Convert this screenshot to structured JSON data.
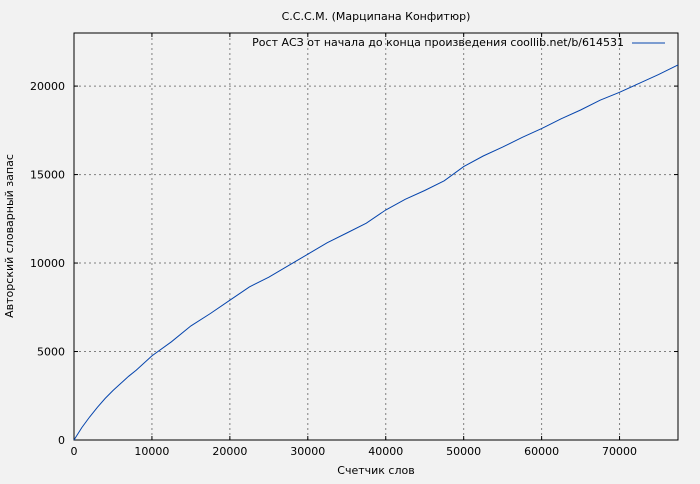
{
  "chart_data": {
    "type": "line",
    "title": "С.С.С.М. (Марципана Конфитюр)",
    "xlabel": "Счетчик слов",
    "ylabel": "Авторский словарный запас",
    "xlim": [
      0,
      77500
    ],
    "ylim": [
      0,
      23000
    ],
    "xticks": [
      0,
      10000,
      20000,
      30000,
      40000,
      50000,
      60000,
      70000
    ],
    "yticks": [
      0,
      5000,
      10000,
      15000,
      20000
    ],
    "grid": true,
    "legend_position": "top-right",
    "line_color": "#0645ad",
    "series": [
      {
        "name": "Рост АСЗ от начала до конца произведения coollib.net/b/614531",
        "x": [
          0,
          1000,
          2000,
          3000,
          4000,
          5000,
          6000,
          7000,
          8000,
          10000,
          12500,
          15000,
          17500,
          20000,
          22500,
          25000,
          27500,
          30000,
          32500,
          35000,
          37500,
          40000,
          42500,
          45000,
          47500,
          50000,
          52500,
          55000,
          57500,
          60000,
          62500,
          65000,
          67500,
          70000,
          72500,
          75000,
          77500
        ],
        "y": [
          0,
          700,
          1300,
          1850,
          2350,
          2800,
          3200,
          3600,
          3950,
          4750,
          5550,
          6450,
          7150,
          7900,
          8650,
          9200,
          9850,
          10500,
          11150,
          11700,
          12250,
          13000,
          13600,
          14100,
          14650,
          15450,
          16050,
          16550,
          17100,
          17600,
          18150,
          18650,
          19200,
          19650,
          20150,
          20650,
          21200
        ]
      }
    ]
  }
}
